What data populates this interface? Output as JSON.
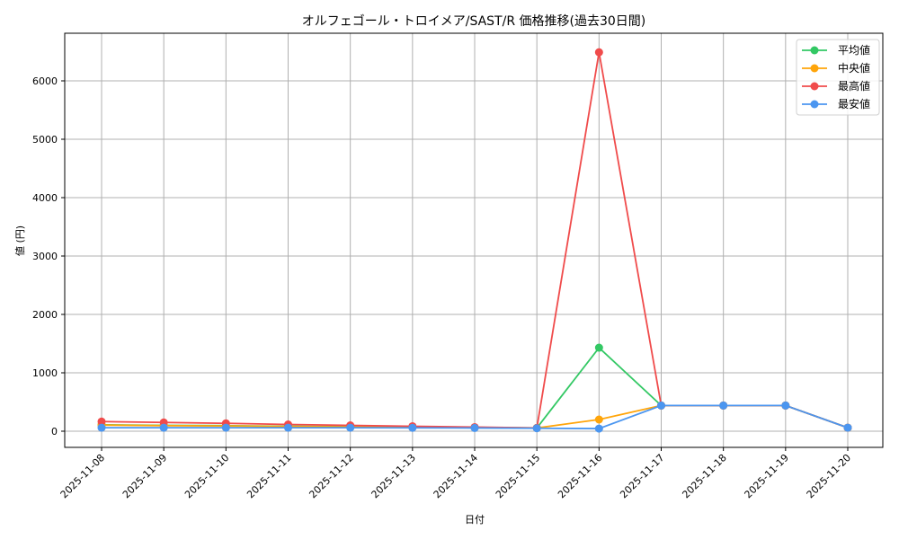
{
  "chart_data": {
    "type": "line",
    "title": "オルフェゴール・トロイメア/SAST/R 価格推移(過去30日間)",
    "xlabel": "日付",
    "ylabel": "値 (円)",
    "ylim": [
      -250,
      6800
    ],
    "yticks": [
      0,
      1000,
      2000,
      3000,
      4000,
      5000,
      6000
    ],
    "grid": true,
    "legend_position": "upper right",
    "categories": [
      "2025-11-08",
      "2025-11-09",
      "2025-11-10",
      "2025-11-11",
      "2025-11-12",
      "2025-11-13",
      "2025-11-14",
      "2025-11-15",
      "2025-11-16",
      "2025-11-17",
      "2025-11-18",
      "2025-11-19",
      "2025-11-20"
    ],
    "series": [
      {
        "name": "平均値",
        "color": "#33c864",
        "values": [
          110,
          100,
          95,
          85,
          80,
          70,
          65,
          55,
          1430,
          440,
          440,
          440,
          60
        ]
      },
      {
        "name": "中央値",
        "color": "#ffa50a",
        "values": [
          105,
          95,
          90,
          80,
          75,
          70,
          60,
          55,
          200,
          440,
          440,
          440,
          60
        ]
      },
      {
        "name": "最高値",
        "color": "#f04b4b",
        "values": [
          165,
          150,
          135,
          115,
          100,
          85,
          70,
          55,
          6490,
          440,
          440,
          440,
          60
        ]
      },
      {
        "name": "最安値",
        "color": "#4b96f0",
        "values": [
          60,
          60,
          60,
          60,
          60,
          58,
          55,
          50,
          45,
          440,
          440,
          440,
          60
        ]
      }
    ]
  }
}
